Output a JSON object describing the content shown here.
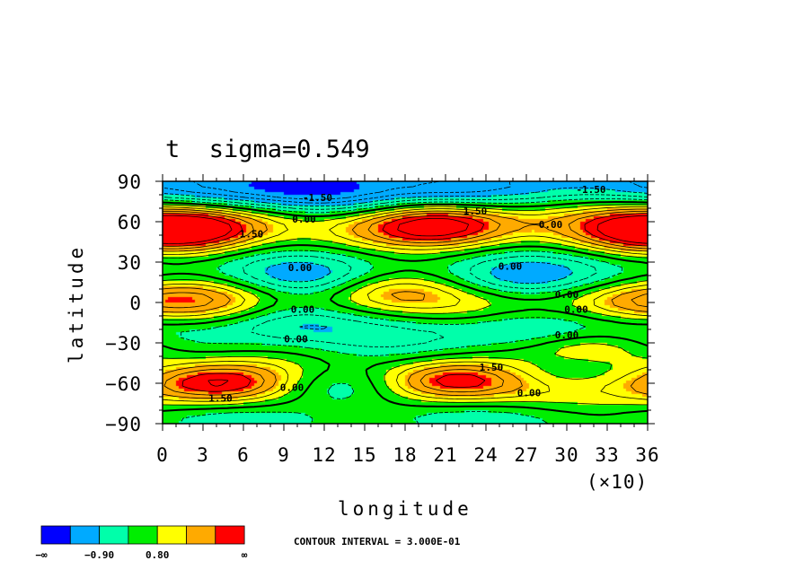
{
  "chart_data": {
    "type": "heatmap",
    "title": "t  sigma=0.549",
    "xlabel": "longitude",
    "ylabel": "latitude",
    "x_ticks": [
      "0",
      "3",
      "6",
      "9",
      "12",
      "15",
      "18",
      "21",
      "24",
      "27",
      "30",
      "33",
      "36"
    ],
    "x_multiplier": "(×10)",
    "y_ticks": [
      "90",
      "60",
      "30",
      "0",
      "−30",
      "−60",
      "−90"
    ],
    "xlim": [
      0,
      360
    ],
    "ylim": [
      -90,
      90
    ],
    "contour_interval_text": "CONTOUR INTERVAL = 3.000E-01",
    "contour_labels": [
      {
        "text": "-1.50",
        "lon": 115,
        "lat": 78
      },
      {
        "text": "-1.50",
        "lon": 318,
        "lat": 84
      },
      {
        "text": "0.00",
        "lon": 105,
        "lat": 62
      },
      {
        "text": "1.50",
        "lon": 66,
        "lat": 51
      },
      {
        "text": "1.50",
        "lon": 232,
        "lat": 68
      },
      {
        "text": "0.00",
        "lon": 288,
        "lat": 58
      },
      {
        "text": "0.00",
        "lon": 102,
        "lat": 26
      },
      {
        "text": "0.00",
        "lon": 258,
        "lat": 27
      },
      {
        "text": "0.00",
        "lon": 300,
        "lat": 6
      },
      {
        "text": "0.00",
        "lon": 104,
        "lat": -5
      },
      {
        "text": "0.00",
        "lon": 307,
        "lat": -5
      },
      {
        "text": "0.00",
        "lon": 99,
        "lat": -27
      },
      {
        "text": "0.00",
        "lon": 300,
        "lat": -24
      },
      {
        "text": "1.50",
        "lon": 244,
        "lat": -48
      },
      {
        "text": "0.00",
        "lon": 96,
        "lat": -63
      },
      {
        "text": "1.50",
        "lon": 43,
        "lat": -71
      },
      {
        "text": "0.00",
        "lon": 272,
        "lat": -67
      }
    ],
    "colorbar": {
      "colors": [
        "#0000ff",
        "#00aaff",
        "#00ffaa",
        "#00ee00",
        "#ffff00",
        "#ffaa00",
        "#ff0000"
      ],
      "labels": [
        "−∞",
        "−0.90",
        "0.80",
        "∞"
      ]
    },
    "field": {
      "description_free": true,
      "zonal_bands": [
        {
          "lat": 88,
          "value": -2.2
        },
        {
          "lat": 58,
          "value": 1.2
        },
        {
          "lat": 25,
          "value": -0.9
        },
        {
          "lat": 0,
          "value": 0.7
        },
        {
          "lat": -25,
          "value": -0.9
        },
        {
          "lat": -60,
          "value": 1.0
        },
        {
          "lat": -88,
          "value": -0.6
        }
      ],
      "blobs": [
        {
          "lon": 25,
          "lat": 55,
          "amp": 1.4
        },
        {
          "lon": 205,
          "lat": 57,
          "amp": 1.6
        },
        {
          "lon": 355,
          "lat": 52,
          "amp": 0.9
        },
        {
          "lon": 40,
          "lat": -60,
          "amp": 1.6
        },
        {
          "lon": 215,
          "lat": -58,
          "amp": 1.5
        },
        {
          "lon": 320,
          "lat": -34,
          "amp": 1.2
        },
        {
          "lon": 165,
          "lat": 10,
          "amp": 0.9
        },
        {
          "lon": 25,
          "lat": 3,
          "amp": 0.6
        },
        {
          "lon": 345,
          "lat": 0,
          "amp": 0.6
        },
        {
          "lon": 130,
          "lat": -62,
          "amp": -1.3
        },
        {
          "lon": 300,
          "lat": -50,
          "amp": -0.9
        },
        {
          "lon": 105,
          "lat": 15,
          "amp": -0.7
        },
        {
          "lon": 260,
          "lat": 15,
          "amp": -0.7
        },
        {
          "lon": 90,
          "lat": -12,
          "amp": -0.8
        },
        {
          "lon": 270,
          "lat": -18,
          "amp": -0.6
        },
        {
          "lon": 110,
          "lat": 88,
          "amp": -0.9
        },
        {
          "lon": 135,
          "lat": 70,
          "amp": -0.8
        }
      ]
    }
  }
}
